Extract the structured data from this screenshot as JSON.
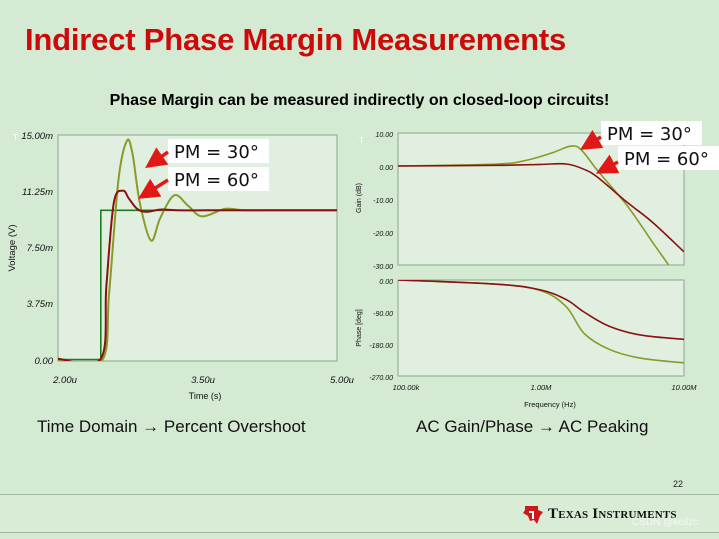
{
  "slide": {
    "title": "Indirect Phase Margin Measurements",
    "subtitle": "Phase Margin can be measured indirectly on closed-loop circuits!",
    "page_number": "22",
    "left_caption": "Time Domain → Percent Overshoot",
    "right_caption": "AC Gain/Phase → AC Peaking",
    "brand": "Texas Instruments",
    "brand_logo": "texas-instruments-logo",
    "watermark": "CSDN @keilzc"
  },
  "colors": {
    "title_red": "#cc0a0a",
    "pm30_curve": "#8a9a28",
    "pm60_curve": "#8b1010",
    "input_step": "#1e7d1e",
    "arrow_red": "#e01818"
  },
  "annotations": {
    "pm30": "PM = 30°",
    "pm60": "PM = 60°",
    "cursor_marker": "T"
  },
  "chart_data": [
    {
      "type": "line",
      "title": "",
      "xlabel": "Time (s)",
      "ylabel": "Voltage (V)",
      "xlim": [
        2.0,
        5.0
      ],
      "ylim": [
        0,
        15
      ],
      "x_ticks": [
        "2.00u",
        "3.50u",
        "5.00u"
      ],
      "y_ticks": [
        "0.00",
        "3.75m",
        "7.50m",
        "11.25m",
        "15.00m"
      ],
      "series": [
        {
          "name": "Input step",
          "x": [
            2.0,
            2.46,
            2.46,
            5.0
          ],
          "values": [
            0.1,
            0.1,
            10.0,
            10.0
          ]
        },
        {
          "name": "PM = 30°",
          "x": [
            2.0,
            2.47,
            2.55,
            2.65,
            2.74,
            2.8,
            2.88,
            3.0,
            3.1,
            3.25,
            3.4,
            3.55,
            3.8,
            4.0,
            4.3,
            5.0
          ],
          "values": [
            0.0,
            0.0,
            4.5,
            12.0,
            14.6,
            13.8,
            10.5,
            8.0,
            9.5,
            11.0,
            10.3,
            9.6,
            10.1,
            10.0,
            10.0,
            10.0
          ]
        },
        {
          "name": "PM = 60°",
          "x": [
            2.0,
            2.46,
            2.52,
            2.6,
            2.7,
            2.76,
            2.85,
            2.95,
            3.1,
            3.3,
            3.6,
            4.0,
            5.0
          ],
          "values": [
            0.15,
            0.15,
            5.0,
            10.5,
            11.3,
            10.8,
            10.1,
            9.9,
            10.05,
            10.0,
            10.0,
            10.0,
            10.0
          ]
        }
      ]
    },
    {
      "type": "line",
      "title": "",
      "xlabel": "Frequency (Hz)",
      "ylabel": "Gain (dB)",
      "xlim": [
        100000,
        10000000
      ],
      "ylim": [
        -30,
        10
      ],
      "x_scale": "log",
      "y_ticks": [
        "10.00",
        "0.00",
        "-10.00",
        "-20.00",
        "-30.00"
      ],
      "series": [
        {
          "name": "PM = 30°",
          "x": [
            100000,
            500000,
            800000,
            1200000,
            1600000,
            1900000,
            2500000,
            4000000,
            6000000,
            7800000
          ],
          "values": [
            0,
            0.6,
            1.8,
            4.0,
            6.0,
            5.0,
            -1.5,
            -12.0,
            -23.0,
            -30.0
          ]
        },
        {
          "name": "PM = 60°",
          "x": [
            100000,
            500000,
            1000000,
            1500000,
            2000000,
            2500000,
            4000000,
            6000000,
            10000000
          ],
          "values": [
            0,
            0.2,
            0.5,
            0.6,
            -1.0,
            -3.5,
            -11.0,
            -17.0,
            -26.0
          ]
        }
      ]
    },
    {
      "type": "line",
      "title": "",
      "xlabel": "Frequency (Hz)",
      "ylabel": "Phase [deg]",
      "xlim": [
        100000,
        10000000
      ],
      "ylim": [
        -270,
        0
      ],
      "x_scale": "log",
      "x_ticks": [
        "100.00k",
        "1.00M",
        "10.00M"
      ],
      "y_ticks": [
        "0.00",
        "-90.00",
        "-180.00",
        "-270.00"
      ],
      "series": [
        {
          "name": "PM = 30°",
          "x": [
            100000,
            500000,
            1000000,
            1500000,
            2000000,
            3000000,
            5000000,
            10000000
          ],
          "values": [
            0,
            -12,
            -30,
            -75,
            -150,
            -195,
            -220,
            -233
          ]
        },
        {
          "name": "PM = 60°",
          "x": [
            100000,
            500000,
            1000000,
            1500000,
            2000000,
            3000000,
            5000000,
            10000000
          ],
          "values": [
            0,
            -12,
            -28,
            -55,
            -90,
            -130,
            -155,
            -167
          ]
        }
      ]
    }
  ]
}
